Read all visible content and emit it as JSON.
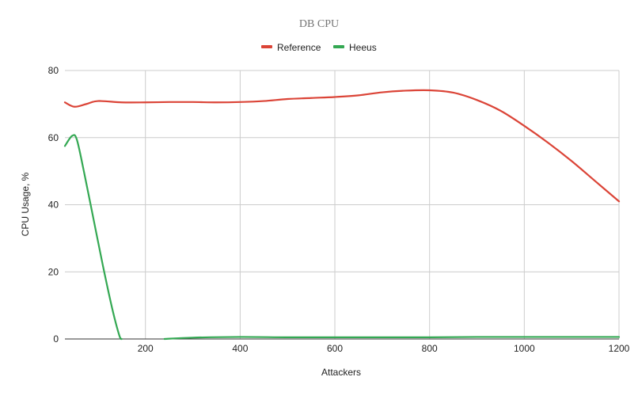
{
  "chart_data": {
    "type": "line",
    "title": "DB CPU",
    "xlabel": "Attackers",
    "ylabel": "CPU Usage, %",
    "xlim": [
      30,
      1200
    ],
    "ylim": [
      0,
      80
    ],
    "xticks": [
      200,
      400,
      600,
      800,
      1000,
      1200
    ],
    "yticks": [
      0,
      20,
      40,
      60,
      80
    ],
    "grid": true,
    "legend_position": "top-center",
    "series": [
      {
        "name": "Reference",
        "color": "#db4437",
        "points": [
          [
            30,
            70.5
          ],
          [
            50,
            69.2
          ],
          [
            75,
            70.0
          ],
          [
            100,
            70.9
          ],
          [
            150,
            70.5
          ],
          [
            200,
            70.5
          ],
          [
            250,
            70.6
          ],
          [
            300,
            70.6
          ],
          [
            350,
            70.5
          ],
          [
            400,
            70.6
          ],
          [
            450,
            70.9
          ],
          [
            500,
            71.5
          ],
          [
            550,
            71.8
          ],
          [
            600,
            72.1
          ],
          [
            650,
            72.6
          ],
          [
            700,
            73.5
          ],
          [
            750,
            74.0
          ],
          [
            800,
            74.1
          ],
          [
            850,
            73.4
          ],
          [
            900,
            71.2
          ],
          [
            950,
            68.0
          ],
          [
            1000,
            63.5
          ],
          [
            1050,
            58.5
          ],
          [
            1100,
            53.0
          ],
          [
            1150,
            47.0
          ],
          [
            1200,
            41.0
          ]
        ]
      },
      {
        "name": "Heeus",
        "color": "#34a853",
        "points": [
          [
            30,
            57.5
          ],
          [
            45,
            60.5
          ],
          [
            55,
            59.5
          ],
          [
            70,
            50.0
          ],
          [
            90,
            36.0
          ],
          [
            110,
            22.0
          ],
          [
            130,
            9.0
          ],
          [
            145,
            1.0
          ],
          [
            150,
            0.0
          ]
        ]
      },
      {
        "name": "Heeus",
        "color": "#34a853",
        "points": [
          [
            240,
            0.0
          ],
          [
            300,
            0.4
          ],
          [
            400,
            0.6
          ],
          [
            500,
            0.5
          ],
          [
            600,
            0.5
          ],
          [
            700,
            0.5
          ],
          [
            800,
            0.5
          ],
          [
            900,
            0.6
          ],
          [
            1000,
            0.6
          ],
          [
            1100,
            0.6
          ],
          [
            1200,
            0.6
          ]
        ]
      }
    ],
    "legend": [
      {
        "name": "Reference",
        "color": "#db4437"
      },
      {
        "name": "Heeus",
        "color": "#34a853"
      }
    ]
  }
}
